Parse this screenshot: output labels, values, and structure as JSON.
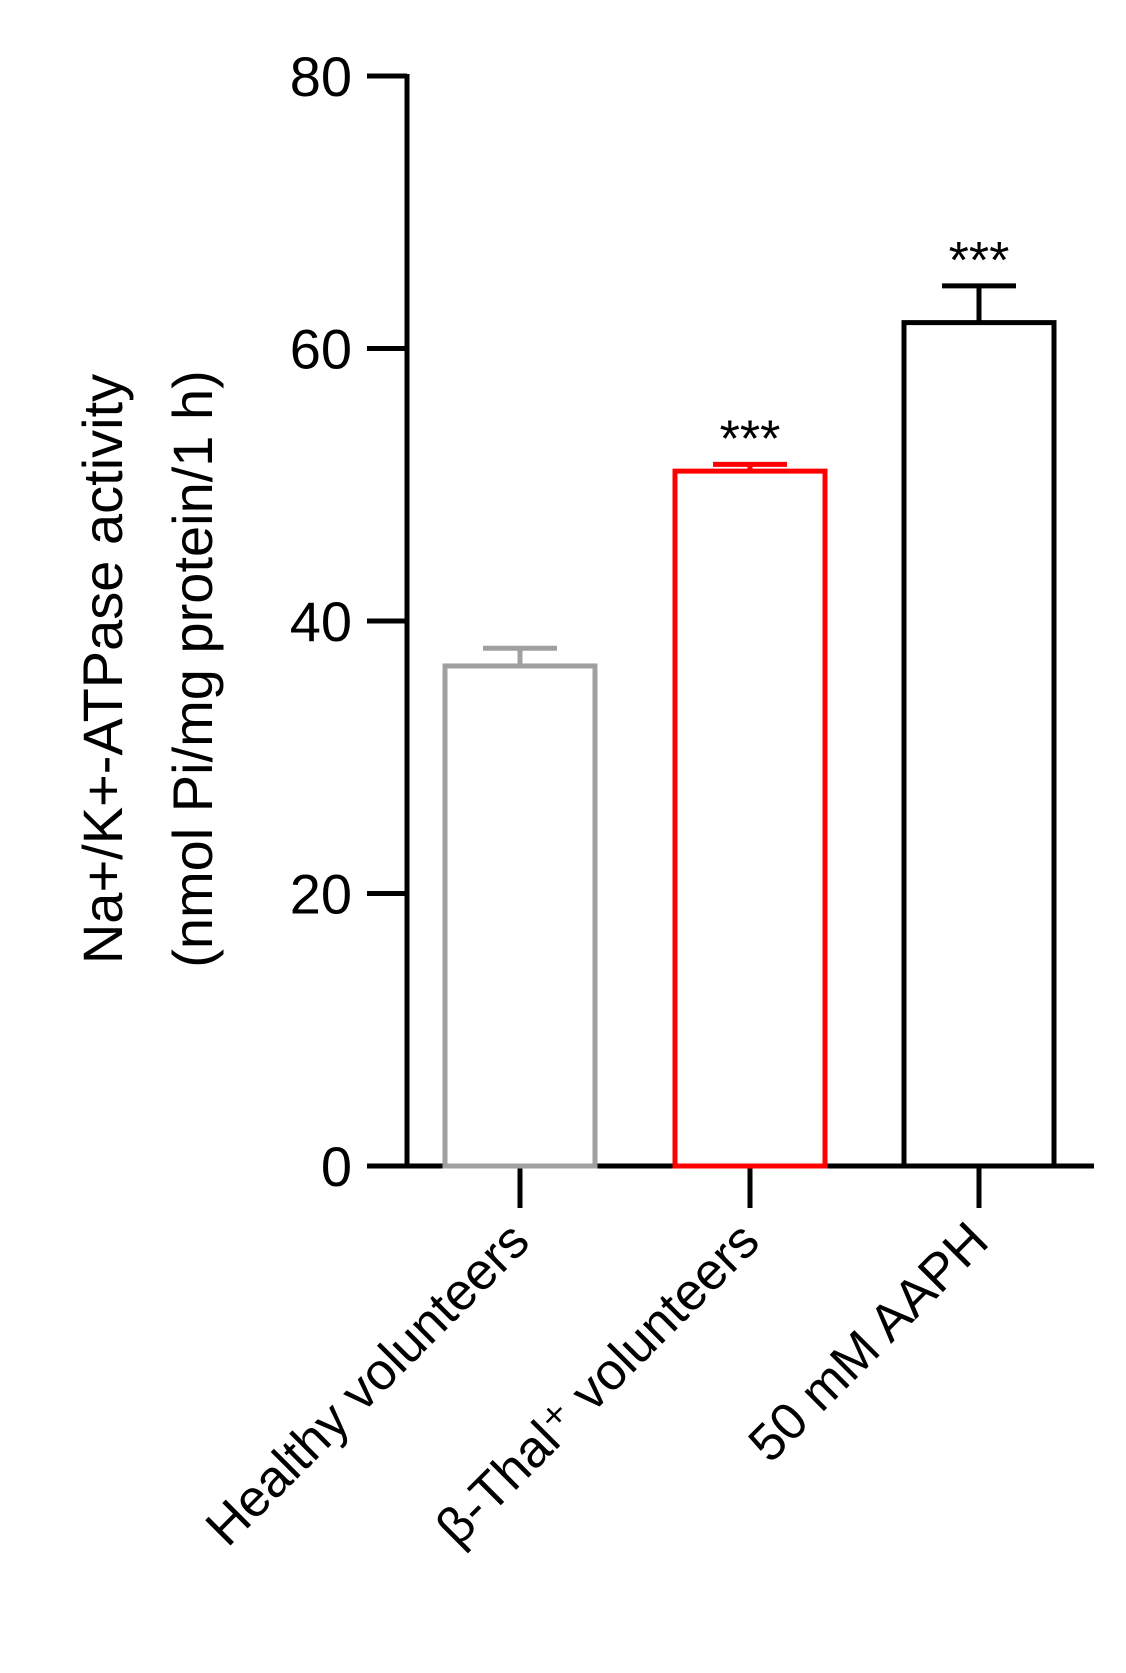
{
  "chart_data": {
    "type": "bar",
    "ylabel": [
      "Na+/K+-ATPase activity",
      "(nmol Pi/mg protein/1 h)"
    ],
    "categories": [
      "Healthy volunteers",
      "β-Thal⁺ volunteers",
      "50 mM AAPH"
    ],
    "values": [
      36.7,
      51.0,
      61.9
    ],
    "errors": [
      1.3,
      0.5,
      2.7
    ],
    "colors": [
      "#a0a0a0",
      "#ff0000",
      "#000000"
    ],
    "annotations": [
      null,
      "***",
      "***"
    ],
    "ylim": [
      0,
      80
    ],
    "yticks": [
      0,
      20,
      40,
      60,
      80
    ]
  }
}
